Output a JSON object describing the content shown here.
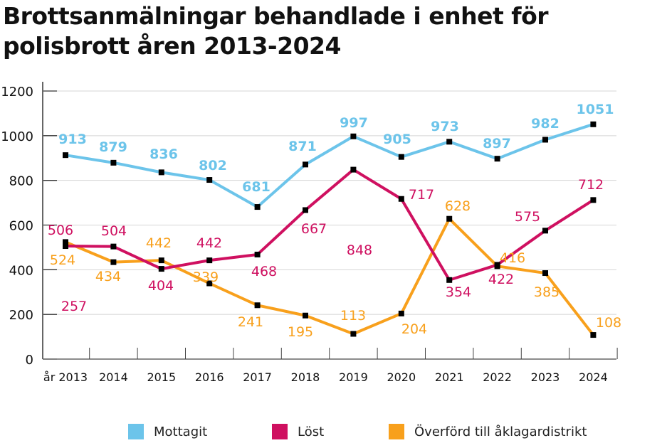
{
  "title_line1": "Brottsanmälningar behandlade i enhet för",
  "title_line2": "polisbrott åren 2013-2024",
  "chart_data": {
    "type": "line",
    "title": "Brottsanmälningar behandlade i enhet för polisbrott åren 2013-2024",
    "categories": [
      "år 2013",
      "2014",
      "2015",
      "2016",
      "2017",
      "2018",
      "2019",
      "2020",
      "2021",
      "2022",
      "2023",
      "2024"
    ],
    "yticks": [
      "0",
      "200",
      "400",
      "600",
      "800",
      "1000",
      "1200"
    ],
    "ylim": [
      0,
      1200
    ],
    "grid": true,
    "legend_position": "bottom",
    "series": [
      {
        "name": "Mottagit",
        "color": "#6cc4ea",
        "values": [
          913,
          879,
          836,
          802,
          681,
          871,
          997,
          905,
          973,
          897,
          982,
          1051
        ]
      },
      {
        "name": "Löst",
        "color": "#cf1060",
        "values": [
          506,
          504,
          404,
          442,
          468,
          667,
          848,
          717,
          354,
          422,
          575,
          712
        ]
      },
      {
        "name": "Överförd till åklagardistrikt",
        "color": "#f8a01c",
        "values": [
          524,
          434,
          442,
          339,
          241,
          195,
          113,
          204,
          628,
          416,
          385,
          108
        ]
      }
    ],
    "annotations": [
      {
        "text": "257",
        "color": "#cf1060"
      }
    ]
  }
}
